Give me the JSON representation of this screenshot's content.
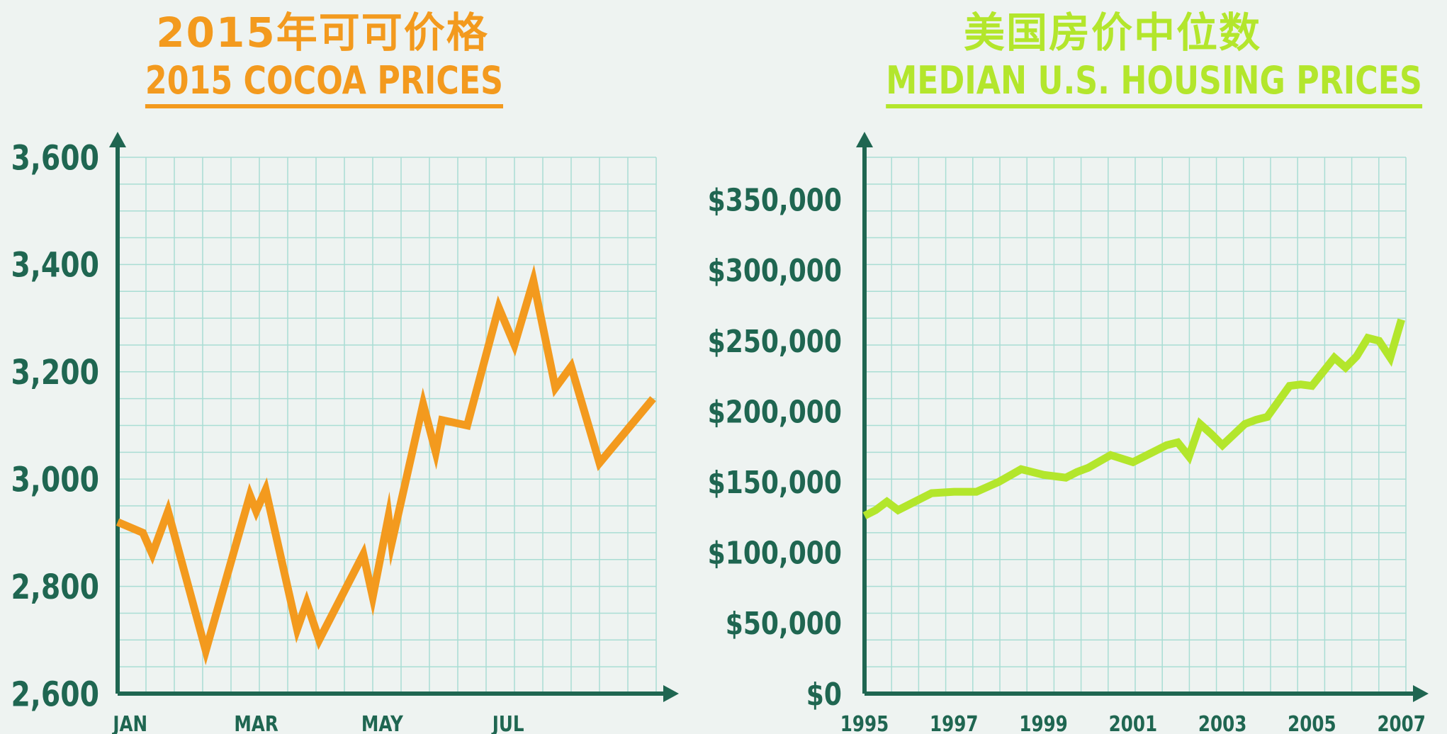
{
  "colors": {
    "background": "#eef3f1",
    "grid": "#a9ddd4",
    "axis": "#1f6651",
    "cocoa": "#f39a1e",
    "housing": "#b3e62c"
  },
  "chart_data": [
    {
      "type": "line",
      "title": "2015年可可价格",
      "subtitle": "2015 COCOA PRICES",
      "xlabel": "",
      "ylabel": "",
      "ylim": [
        2600,
        3600
      ],
      "xlim": [
        1,
        9.55
      ],
      "y_ticks": [
        "2,600",
        "2,800",
        "3,000",
        "3,200",
        "3,400",
        "3,600"
      ],
      "y_tick_values": [
        2600,
        2800,
        3000,
        3200,
        3400,
        3600
      ],
      "x_ticks": [
        "JAN",
        "MAR",
        "MAY",
        "JUL"
      ],
      "x_tick_values": [
        1.2,
        3.2,
        5.2,
        7.2
      ],
      "grid": true,
      "series": [
        {
          "x": [
            1.0,
            1.4,
            1.55,
            1.8,
            2.4,
            3.1,
            3.2,
            3.35,
            3.85,
            4.0,
            4.2,
            4.9,
            5.05,
            5.3,
            5.35,
            5.85,
            6.05,
            6.15,
            6.55,
            7.05,
            7.3,
            7.6,
            7.95,
            8.2,
            8.65,
            9.5
          ],
          "y": [
            2920,
            2900,
            2860,
            2940,
            2680,
            2970,
            2940,
            2980,
            2720,
            2770,
            2700,
            2860,
            2780,
            2930,
            2880,
            3140,
            3050,
            3110,
            3100,
            3320,
            3250,
            3370,
            3170,
            3210,
            3030,
            3150
          ]
        }
      ]
    },
    {
      "type": "line",
      "title": "美国房价中位数",
      "subtitle": "MEDIAN U.S. HOUSING PRICES",
      "xlabel": "",
      "ylabel": "",
      "ylim": [
        0,
        380000
      ],
      "xlim": [
        1995,
        2007.1
      ],
      "y_ticks": [
        "$0",
        "$50,000",
        "$100,000",
        "$150,000",
        "$200,000",
        "$250,000",
        "$300,000",
        "$350,000"
      ],
      "y_tick_values": [
        0,
        50000,
        100000,
        150000,
        200000,
        250000,
        300000,
        350000
      ],
      "x_ticks": [
        "1995",
        "1997",
        "1999",
        "2001",
        "2003",
        "2005",
        "2007"
      ],
      "x_tick_values": [
        1995,
        1997,
        1999,
        2001,
        2003,
        2005,
        2007
      ],
      "grid": true,
      "series": [
        {
          "x": [
            1995,
            1995.25,
            1995.5,
            1995.75,
            1996,
            1996.5,
            1997,
            1997.5,
            1998,
            1998.5,
            1999,
            1999.5,
            1999.75,
            2000,
            2000.5,
            2001,
            2001.5,
            2001.75,
            2002,
            2002.25,
            2002.5,
            2002.75,
            2003,
            2003.5,
            2003.75,
            2004,
            2004.5,
            2004.75,
            2005,
            2005.25,
            2005.5,
            2005.75,
            2006,
            2006.25,
            2006.5,
            2006.75,
            2007
          ],
          "y": [
            126000,
            130000,
            136000,
            130000,
            134000,
            142000,
            143000,
            143000,
            150000,
            159000,
            155000,
            153000,
            157000,
            160000,
            169000,
            164000,
            172000,
            176000,
            178000,
            168000,
            191000,
            184000,
            176000,
            191000,
            194000,
            196000,
            218000,
            219000,
            218000,
            228000,
            238000,
            231000,
            239000,
            252000,
            250000,
            238000,
            265000
          ]
        }
      ]
    }
  ]
}
